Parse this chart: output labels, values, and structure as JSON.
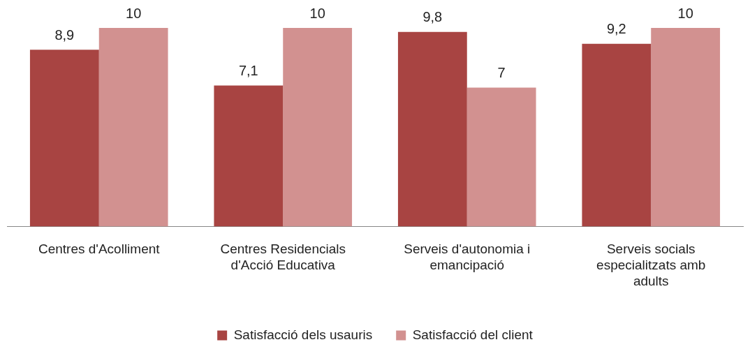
{
  "chart_data": {
    "type": "bar",
    "categories": [
      "Centres d'Acolliment",
      "Centres Residencials d'Acció Educativa",
      "Serveis d'autonomia i emancipació",
      "Serveis socials especialitzats amb adults"
    ],
    "series": [
      {
        "name": "Satisfacció dels usauris",
        "color": "#a84442",
        "values": [
          8.9,
          7.1,
          9.8,
          9.2
        ],
        "value_labels": [
          "8,9",
          "7,1",
          "9,8",
          "9,2"
        ]
      },
      {
        "name": "Satisfacció del client",
        "color": "#d29190",
        "values": [
          10,
          10,
          7,
          10
        ],
        "value_labels": [
          "10",
          "10",
          "7",
          "10"
        ]
      }
    ],
    "legend": "bottom",
    "grid": false
  }
}
